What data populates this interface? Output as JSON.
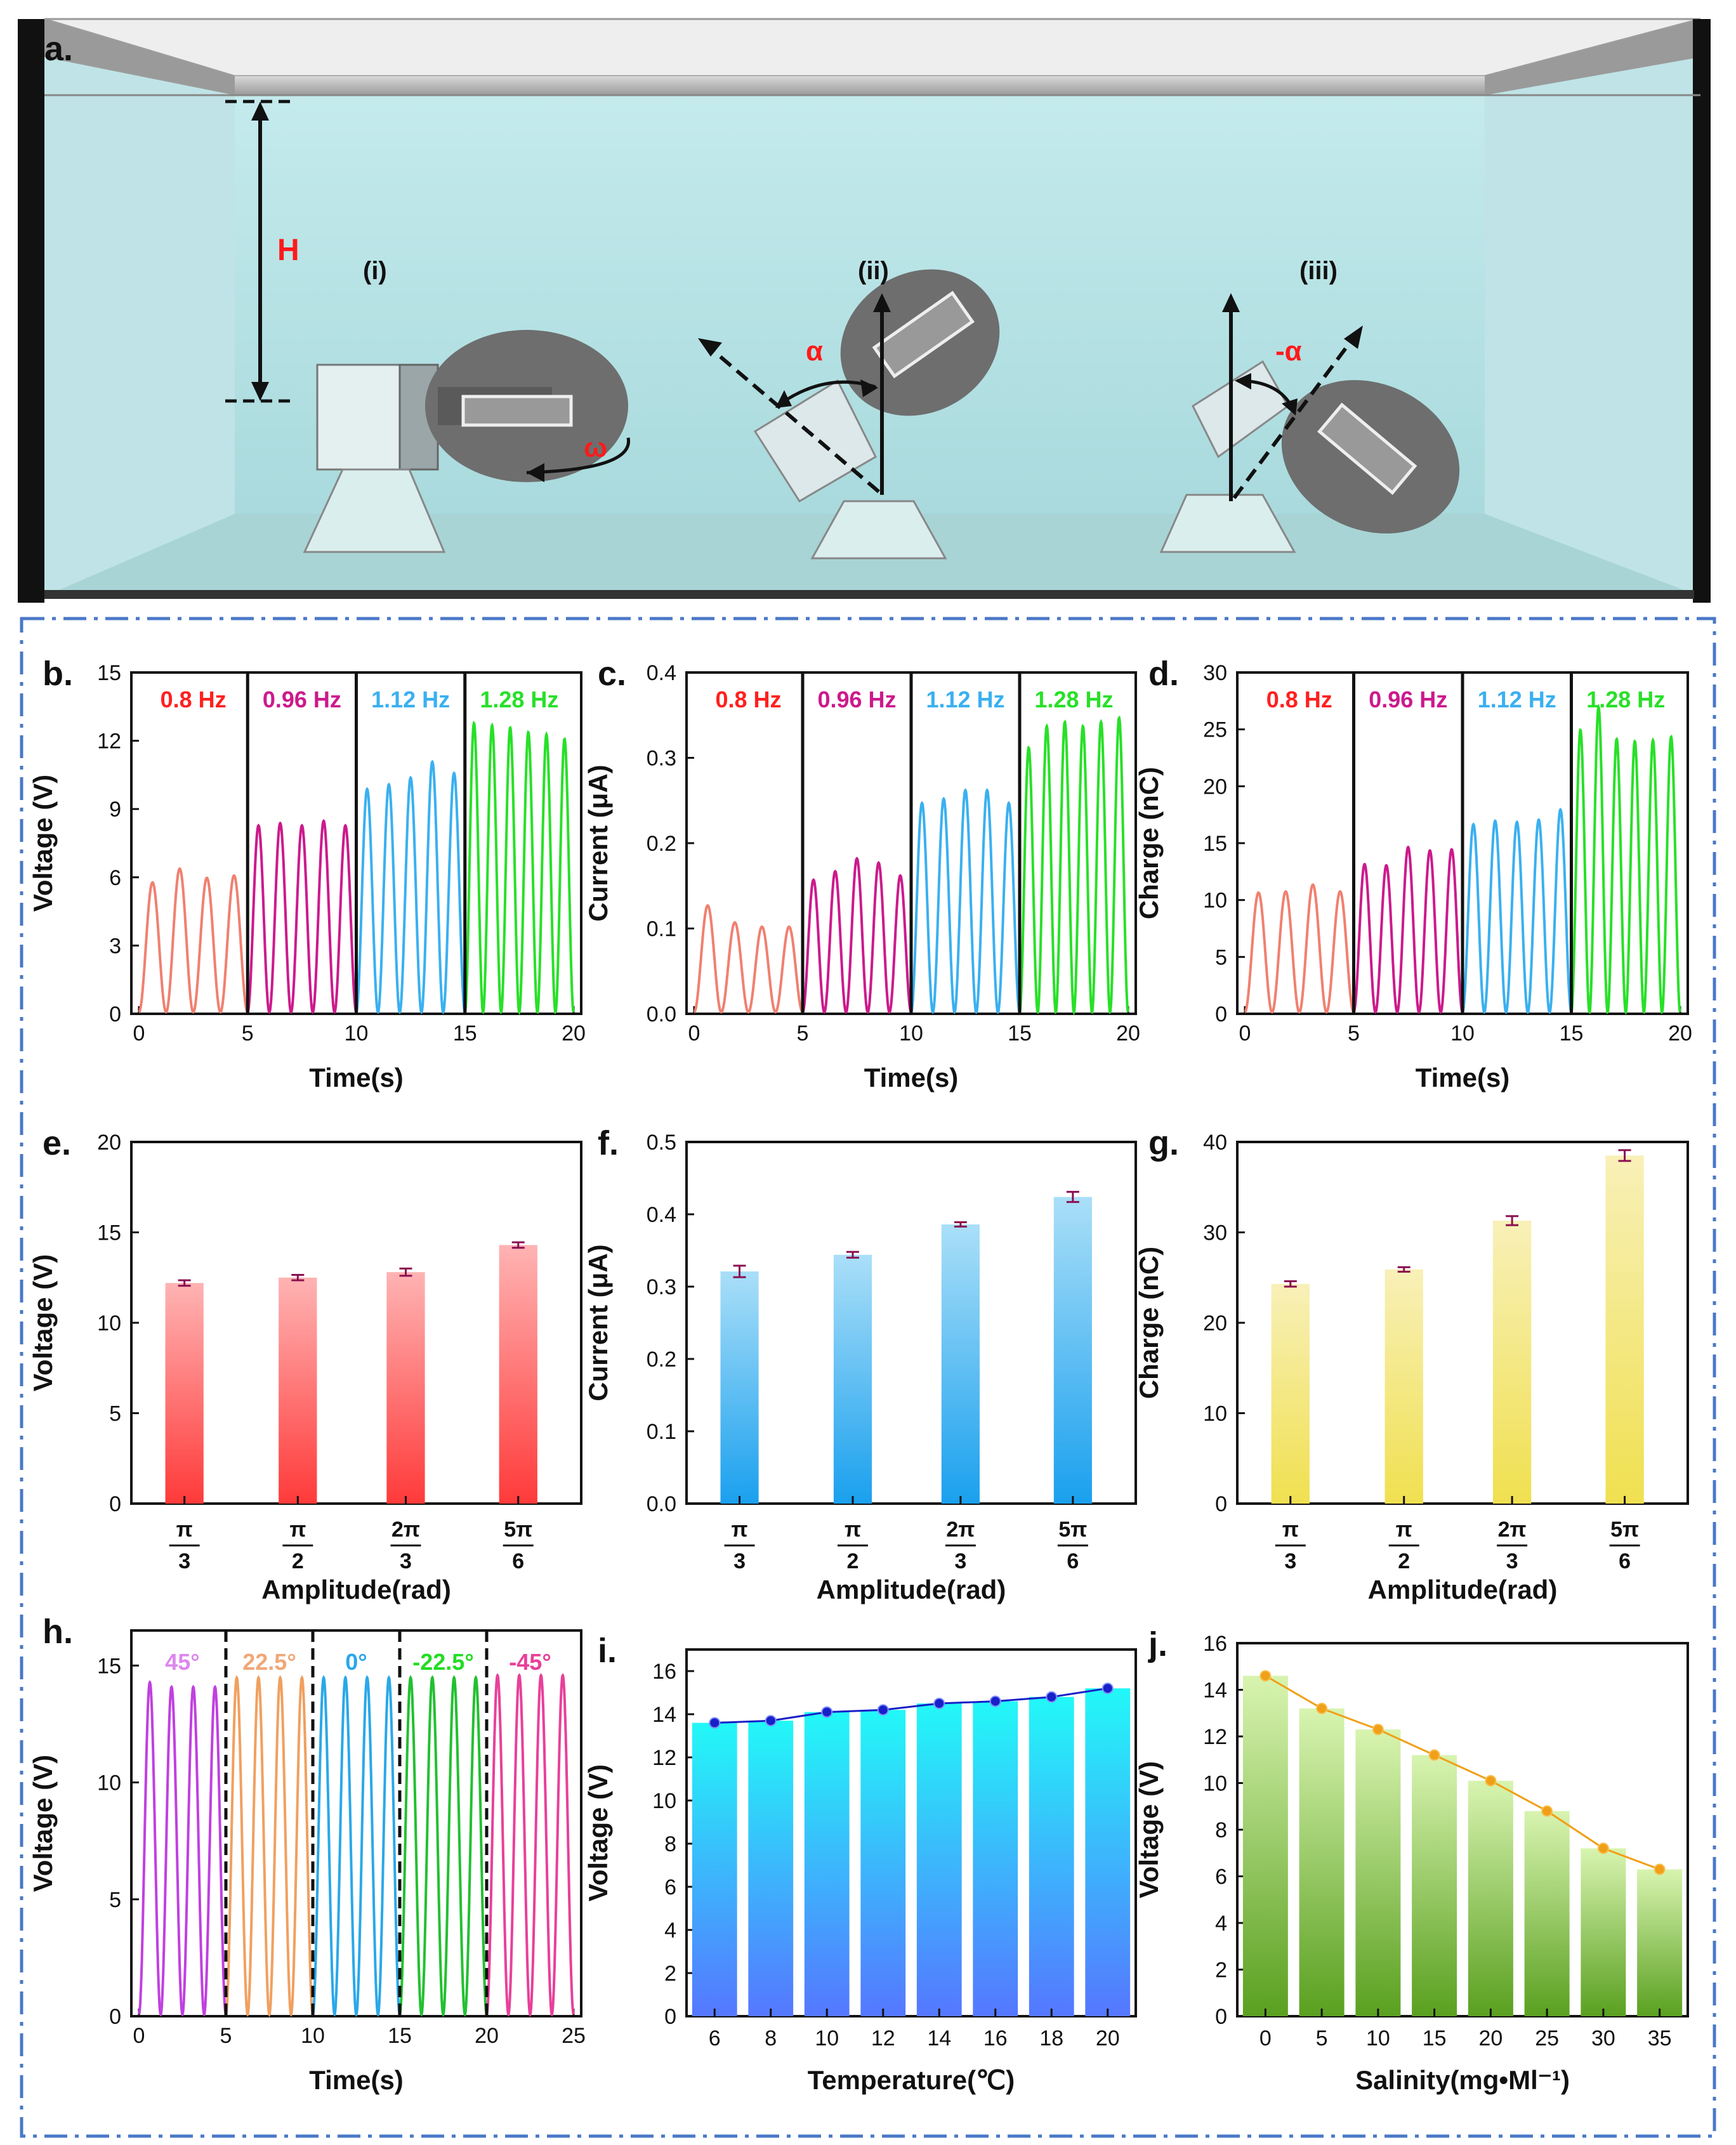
{
  "colors": {
    "red": "#ff2020",
    "magenta": "#cc1a8c",
    "blue": "#3ab0f0",
    "green": "#28e028",
    "salmon": "#f08070",
    "violet": "#c040e0",
    "orange": "#f0a060",
    "frame": "#4a78c8",
    "water": "#bfe6e8"
  },
  "panel_a": {
    "label": "a.",
    "height_label": "H",
    "omega_label": "ω",
    "alpha_label": "α",
    "neg_alpha_label": "-α",
    "positions": [
      "(i)",
      "(ii)",
      "(iii)"
    ]
  },
  "chart_data": [
    {
      "id": "b",
      "label": "b.",
      "type": "line",
      "xlabel": "Time(s)",
      "ylabel": "Voltage (V)",
      "xlim": [
        0,
        20
      ],
      "ylim": [
        0,
        15
      ],
      "xticks": [
        "0",
        "5",
        "10",
        "15",
        "20"
      ],
      "yticks": [
        "0",
        "3",
        "6",
        "9",
        "12",
        "15"
      ],
      "segments": [
        {
          "name": "0.8 Hz",
          "start": 0,
          "end": 5,
          "freq": 0.8,
          "peaks": [
            5.7,
            6.3,
            5.9,
            6.0
          ],
          "color": "#f08070",
          "label_color": "#ff2020"
        },
        {
          "name": "0.96 Hz",
          "start": 5,
          "end": 10,
          "freq": 0.96,
          "peaks": [
            8.2,
            8.3,
            8.2,
            8.4,
            8.2
          ],
          "color": "#cc1a8c",
          "label_color": "#cc1a8c"
        },
        {
          "name": "1.12 Hz",
          "start": 10,
          "end": 15,
          "freq": 1.12,
          "peaks": [
            9.8,
            10.0,
            10.3,
            11.0,
            10.5
          ],
          "color": "#3ab0f0",
          "label_color": "#3ab0f0"
        },
        {
          "name": "1.28 Hz",
          "start": 15,
          "end": 20,
          "freq": 1.28,
          "peaks": [
            12.7,
            12.6,
            12.5,
            12.3,
            12.2,
            12.0
          ],
          "color": "#28e028",
          "label_color": "#28e028"
        }
      ]
    },
    {
      "id": "c",
      "label": "c.",
      "type": "line",
      "xlabel": "Time(s)",
      "ylabel": "Current (μA)",
      "xlim": [
        0,
        20
      ],
      "ylim": [
        0,
        0.4
      ],
      "xticks": [
        "0",
        "5",
        "10",
        "15",
        "20"
      ],
      "yticks": [
        "0.0",
        "0.1",
        "0.2",
        "0.3",
        "0.4"
      ],
      "segments": [
        {
          "name": "0.8 Hz",
          "start": 0,
          "end": 5,
          "freq": 0.8,
          "peaks": [
            0.125,
            0.105,
            0.1,
            0.1
          ],
          "color": "#f08070",
          "label_color": "#ff2020"
        },
        {
          "name": "0.96 Hz",
          "start": 5,
          "end": 10,
          "freq": 0.96,
          "peaks": [
            0.155,
            0.165,
            0.18,
            0.175,
            0.16
          ],
          "color": "#cc1a8c",
          "label_color": "#cc1a8c"
        },
        {
          "name": "1.12 Hz",
          "start": 10,
          "end": 15,
          "freq": 1.12,
          "peaks": [
            0.245,
            0.25,
            0.26,
            0.26,
            0.245
          ],
          "color": "#3ab0f0",
          "label_color": "#3ab0f0"
        },
        {
          "name": "1.28 Hz",
          "start": 15,
          "end": 20,
          "freq": 1.28,
          "peaks": [
            0.31,
            0.335,
            0.34,
            0.335,
            0.34,
            0.345
          ],
          "color": "#28e028",
          "label_color": "#28e028"
        }
      ]
    },
    {
      "id": "d",
      "label": "d.",
      "type": "line",
      "xlabel": "Time(s)",
      "ylabel": "Charge (nC)",
      "xlim": [
        0,
        20
      ],
      "ylim": [
        0,
        30
      ],
      "xticks": [
        "0",
        "5",
        "10",
        "15",
        "20"
      ],
      "yticks": [
        "0",
        "5",
        "10",
        "15",
        "20",
        "25",
        "30"
      ],
      "segments": [
        {
          "name": "0.8 Hz",
          "start": 0,
          "end": 5,
          "freq": 0.8,
          "peaks": [
            10.5,
            10.6,
            11.2,
            10.6
          ],
          "color": "#f08070",
          "label_color": "#ff2020"
        },
        {
          "name": "0.96 Hz",
          "start": 5,
          "end": 10,
          "freq": 0.96,
          "peaks": [
            13.0,
            12.9,
            14.5,
            14.2,
            14.3
          ],
          "color": "#cc1a8c",
          "label_color": "#cc1a8c"
        },
        {
          "name": "1.12 Hz",
          "start": 10,
          "end": 15,
          "freq": 1.12,
          "peaks": [
            16.5,
            16.8,
            16.7,
            16.9,
            17.8
          ],
          "color": "#3ab0f0",
          "label_color": "#3ab0f0"
        },
        {
          "name": "1.28 Hz",
          "start": 15,
          "end": 20,
          "freq": 1.28,
          "peaks": [
            24.8,
            26.8,
            24.0,
            23.8,
            23.9,
            24.2
          ],
          "color": "#28e028",
          "label_color": "#28e028"
        }
      ]
    },
    {
      "id": "e",
      "label": "e.",
      "type": "bar",
      "xlabel": "Amplitude(rad)",
      "ylabel": "Voltage (V)",
      "ylim": [
        0,
        20
      ],
      "yticks": [
        "0",
        "5",
        "10",
        "15",
        "20"
      ],
      "categories": [
        [
          "π",
          "3"
        ],
        [
          "π",
          "2"
        ],
        [
          "2π",
          "3"
        ],
        [
          "5π",
          "6"
        ]
      ],
      "values": [
        12.2,
        12.5,
        12.8,
        14.3
      ],
      "errors": [
        0.15,
        0.15,
        0.2,
        0.15
      ],
      "gradient": [
        "#ffb3b3",
        "#ff3a3a"
      ]
    },
    {
      "id": "f",
      "label": "f.",
      "type": "bar",
      "xlabel": "Amplitude(rad)",
      "ylabel": "Current (μA)",
      "ylim": [
        0,
        0.5
      ],
      "yticks": [
        "0.0",
        "0.1",
        "0.2",
        "0.3",
        "0.4",
        "0.5"
      ],
      "categories": [
        [
          "π",
          "3"
        ],
        [
          "π",
          "2"
        ],
        [
          "2π",
          "3"
        ],
        [
          "5π",
          "6"
        ]
      ],
      "values": [
        0.321,
        0.344,
        0.386,
        0.424
      ],
      "errors": [
        0.008,
        0.004,
        0.003,
        0.007
      ],
      "gradient": [
        "#aadff8",
        "#1aa0ee"
      ]
    },
    {
      "id": "g",
      "label": "g.",
      "type": "bar",
      "xlabel": "Amplitude(rad)",
      "ylabel": "Charge (nC)",
      "ylim": [
        0,
        40
      ],
      "yticks": [
        "0",
        "10",
        "20",
        "30",
        "40"
      ],
      "categories": [
        [
          "π",
          "3"
        ],
        [
          "π",
          "2"
        ],
        [
          "2π",
          "3"
        ],
        [
          "5π",
          "6"
        ]
      ],
      "values": [
        24.3,
        25.9,
        31.3,
        38.5
      ],
      "errors": [
        0.3,
        0.25,
        0.5,
        0.6
      ],
      "gradient": [
        "#f8f0b8",
        "#f0e050"
      ]
    },
    {
      "id": "h",
      "label": "h.",
      "type": "line",
      "xlabel": "Time(s)",
      "ylabel": "Voltage (V)",
      "xlim": [
        0,
        25
      ],
      "ylim": [
        0,
        16.5
      ],
      "xticks": [
        "0",
        "5",
        "10",
        "15",
        "20",
        "25"
      ],
      "yticks": [
        "0",
        "5",
        "10",
        "15"
      ],
      "segments": [
        {
          "name": "45°",
          "start": 0,
          "end": 5,
          "freq": 0.8,
          "peaks": [
            14.2,
            14.0,
            14.0,
            14.0
          ],
          "color": "#c040e0",
          "label_color": "#dd88ee"
        },
        {
          "name": "22.5°",
          "start": 5,
          "end": 10,
          "freq": 0.8,
          "peaks": [
            14.4,
            14.4,
            14.4,
            14.4
          ],
          "color": "#f0a060",
          "label_color": "#f0a878"
        },
        {
          "name": "0°",
          "start": 10,
          "end": 15,
          "freq": 0.8,
          "peaks": [
            14.4,
            14.4,
            14.4,
            14.4
          ],
          "color": "#2aa8e8",
          "label_color": "#2aa8e8"
        },
        {
          "name": "-22.5°",
          "start": 15,
          "end": 20,
          "freq": 0.8,
          "peaks": [
            14.4,
            14.4,
            14.4,
            14.4
          ],
          "color": "#22c030",
          "label_color": "#22dd22"
        },
        {
          "name": "-45°",
          "start": 20,
          "end": 25,
          "freq": 0.8,
          "peaks": [
            14.5,
            14.5,
            14.5,
            14.5
          ],
          "color": "#e8409a",
          "label_color": "#e8409a"
        }
      ]
    },
    {
      "id": "i",
      "label": "i.",
      "type": "bar",
      "xlabel": "Temperature(℃)",
      "ylabel": "Voltage (V)",
      "ylim": [
        0,
        17
      ],
      "yticks": [
        "0",
        "2",
        "4",
        "6",
        "8",
        "10",
        "12",
        "14",
        "16"
      ],
      "categories": [
        "6",
        "8",
        "10",
        "12",
        "14",
        "16",
        "18",
        "20"
      ],
      "values": [
        13.6,
        13.7,
        14.1,
        14.2,
        14.5,
        14.6,
        14.8,
        15.2
      ],
      "gradient": [
        "#22f8f8",
        "#5577ff"
      ],
      "line_color": "#1820c8"
    },
    {
      "id": "j",
      "label": "j.",
      "type": "bar",
      "xlabel": "Salinity(mg•Ml⁻¹)",
      "ylabel": "Voltage (V)",
      "ylim": [
        0,
        16
      ],
      "yticks": [
        "0",
        "2",
        "4",
        "6",
        "8",
        "10",
        "12",
        "14",
        "16"
      ],
      "categories": [
        "0",
        "5",
        "10",
        "15",
        "20",
        "25",
        "30",
        "35"
      ],
      "values": [
        14.6,
        13.2,
        12.3,
        11.2,
        10.1,
        8.8,
        7.2,
        6.3
      ],
      "gradient": [
        "#d8f4b0",
        "#5aa020"
      ],
      "line_color": "#f0a018"
    }
  ]
}
